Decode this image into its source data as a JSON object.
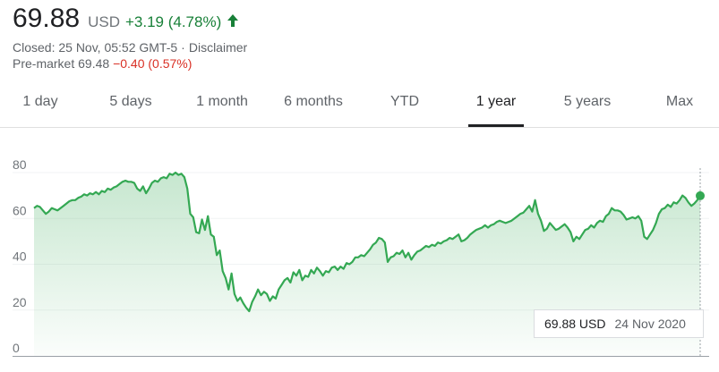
{
  "quote": {
    "price": "69.88",
    "currency": "USD",
    "change": "+3.19 (4.78%)",
    "closed": "Closed: 25 Nov, 05:52 GMT-5",
    "disclaimer": "Disclaimer",
    "premarket_label": "Pre-market 69.48",
    "premarket_change": "−0.40 (0.57%)",
    "colors": {
      "positive": "#188038",
      "negative": "#d93025"
    }
  },
  "tabs": [
    {
      "label": "1 day"
    },
    {
      "label": "5 days"
    },
    {
      "label": "1 month"
    },
    {
      "label": "6 months"
    },
    {
      "label": "YTD"
    },
    {
      "label": "1 year",
      "active": true
    },
    {
      "label": "5 years"
    },
    {
      "label": "Max"
    }
  ],
  "tooltip": {
    "value": "69.88 USD",
    "date": "24 Nov 2020"
  },
  "chart_data": {
    "type": "area",
    "y_ticks": [
      "80",
      "60",
      "40",
      "20",
      "0"
    ],
    "ylim": [
      0,
      80
    ],
    "grid": true,
    "line_color": "#34a853",
    "series": [
      {
        "values": [
          64.5,
          65.5,
          65,
          63.5,
          62,
          63,
          64.5,
          64,
          63.5,
          64.5,
          65.5,
          66.5,
          67.5,
          68,
          68,
          69,
          69.5,
          70.5,
          70,
          71,
          70.5,
          71.5,
          70.5,
          72,
          71.5,
          73,
          72.5,
          73.5,
          74,
          75,
          76,
          76.5,
          76,
          76,
          75.5,
          73,
          72,
          74,
          71,
          73,
          75.5,
          76.5,
          76,
          77.5,
          78,
          77.5,
          79.5,
          79,
          80,
          79,
          79.5,
          78,
          73,
          62,
          60.5,
          54,
          53.5,
          59.5,
          55,
          61,
          53,
          52,
          44,
          46,
          37,
          34,
          29,
          36,
          27,
          24,
          25.5,
          23,
          21,
          19.5,
          23.5,
          26,
          29,
          26.5,
          28,
          27,
          24,
          26,
          25,
          29,
          31,
          33,
          34,
          32,
          36.5,
          35,
          37.5,
          33,
          35,
          34.5,
          37.5,
          36,
          38.5,
          37,
          35,
          37,
          36.5,
          38.5,
          39,
          37.5,
          39,
          38,
          40.5,
          40,
          41,
          43,
          43,
          44,
          43.5,
          45,
          46.5,
          48.5,
          49.5,
          51.5,
          51,
          49.5,
          41,
          43,
          43.5,
          45,
          44.5,
          46,
          43,
          45,
          42,
          44,
          45.5,
          46,
          47,
          48,
          47.5,
          48.5,
          48,
          49.5,
          49,
          50,
          50.5,
          51.5,
          51,
          52,
          53,
          50,
          50.5,
          51.5,
          53,
          54,
          55,
          55.5,
          56,
          57,
          56,
          57,
          57.5,
          58.5,
          59,
          58.5,
          58,
          58.5,
          59,
          60,
          61,
          62,
          62.5,
          64,
          65.5,
          63,
          68,
          62,
          59,
          54.5,
          55.5,
          58,
          56.5,
          55,
          55.5,
          56.5,
          57.5,
          56,
          54,
          50,
          52,
          51,
          53,
          55,
          55.5,
          57,
          56,
          58,
          59,
          58.5,
          61,
          62,
          64.5,
          63.5,
          63.5,
          63,
          61.5,
          59.5,
          60,
          60.5,
          60,
          61,
          59,
          52,
          51,
          53,
          55,
          58,
          62,
          64,
          64.5,
          66,
          65,
          67,
          66.5,
          68,
          70,
          69,
          67,
          65.5,
          66.5,
          68,
          69.88
        ]
      }
    ],
    "last": {
      "value": 69.88,
      "date": "24 Nov 2020"
    }
  }
}
